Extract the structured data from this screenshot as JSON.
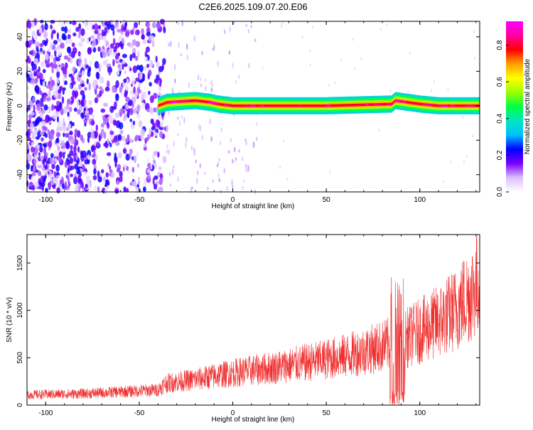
{
  "title": "C2E6.2025.109.07.20.E06",
  "colors": {
    "snr_line": "#f03030",
    "frame": "#000000"
  },
  "chart_data": [
    {
      "type": "heatmap",
      "xlabel": "Height of straight line (km)",
      "ylabel": "Frequency (Hz)",
      "xlim": [
        -110,
        132
      ],
      "ylim": [
        -50,
        49
      ],
      "x_ticks": [
        "-100",
        "-50",
        "0",
        "50",
        "100"
      ],
      "y_ticks": [
        "-40",
        "-20",
        "0",
        "20",
        "40"
      ],
      "colorbar": {
        "label": "Normalized spectral amplitude",
        "ticks": [
          "0.0",
          "0.2",
          "0.4",
          "0.6",
          "0.8"
        ],
        "range": [
          0,
          0.93
        ],
        "colormap": [
          "#ffffff",
          "#dcc0ff",
          "#7a00ff",
          "#0000ff",
          "#00bfff",
          "#00e6c0",
          "#00ff40",
          "#9cff00",
          "#ffff00",
          "#ffa000",
          "#ff0000",
          "#ff00a0",
          "#ff00ff"
        ]
      },
      "band": {
        "center_hz": [
          [
            -40,
            0
          ],
          [
            -35,
            2
          ],
          [
            -20,
            3
          ],
          [
            -12,
            2
          ],
          [
            -8,
            1
          ],
          [
            0,
            0
          ],
          [
            50,
            0
          ],
          [
            85,
            1
          ],
          [
            87,
            3
          ],
          [
            100,
            1
          ],
          [
            110,
            0
          ],
          [
            132,
            0
          ]
        ],
        "halfwidth_hz": 2.5
      },
      "noise_region_km": [
        -110,
        -35
      ],
      "sparse_region_km": [
        -35,
        13
      ]
    },
    {
      "type": "line",
      "xlabel": "Height of straight line (km)",
      "ylabel": "SNR (10 * v/v)",
      "xlim": [
        -110,
        132
      ],
      "ylim": [
        0,
        1800
      ],
      "x_ticks": [
        "-100",
        "-50",
        "0",
        "50",
        "100"
      ],
      "y_ticks": [
        "0",
        "500",
        "1000",
        "1500"
      ],
      "series": [
        {
          "color": "#f03030",
          "envelope_km": [
            -110,
            -80,
            -60,
            -40,
            -36,
            -20,
            0,
            20,
            40,
            60,
            80,
            90,
            100,
            110,
            120,
            132
          ],
          "envelope_mean": [
            110,
            120,
            140,
            160,
            230,
            270,
            340,
            390,
            450,
            520,
            620,
            680,
            780,
            880,
            1020,
            1300
          ],
          "spike_region_km": [
            84,
            92
          ]
        }
      ]
    }
  ]
}
